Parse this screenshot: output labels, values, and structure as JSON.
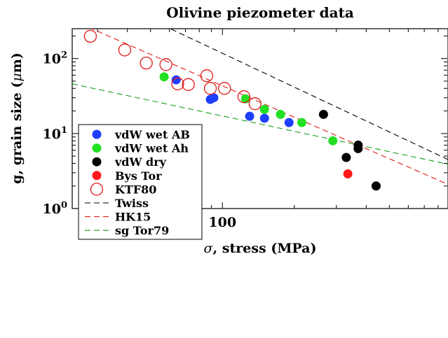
{
  "chart_data": {
    "type": "scatter",
    "title": "Olivine piezometer data",
    "xlabel_symbol": "σ",
    "xlabel_text": ", stress (MPa)",
    "ylabel_text": "g, grain size (",
    "ylabel_symbol": "μ",
    "ylabel_end": "m)",
    "x_scale": "log",
    "y_scale": "log",
    "xlim": [
      23.5,
      880
    ],
    "ylim": [
      1,
      250
    ],
    "x_ticks": [
      {
        "value": 100,
        "label": "100"
      }
    ],
    "y_ticks": [
      {
        "value": 1,
        "base": "10",
        "exp": "0"
      },
      {
        "value": 10,
        "base": "10",
        "exp": "1"
      },
      {
        "value": 100,
        "base": "10",
        "exp": "2"
      }
    ],
    "grid": false,
    "legend_position": "lower-left",
    "series": [
      {
        "name": "vdW wet AB",
        "kind": "marker",
        "color": "#1f3fff",
        "points": [
          [
            64,
            52
          ],
          [
            89,
            28.5
          ],
          [
            92,
            30
          ],
          [
            130,
            17
          ],
          [
            150,
            16
          ],
          [
            190,
            14
          ]
        ]
      },
      {
        "name": "vdW wet Ah",
        "kind": "marker",
        "color": "#22e022",
        "points": [
          [
            57,
            57
          ],
          [
            125,
            29
          ],
          [
            150,
            21
          ],
          [
            175,
            18
          ],
          [
            215,
            14
          ],
          [
            290,
            8
          ]
        ]
      },
      {
        "name": "vdW dry",
        "kind": "marker",
        "color": "#000000",
        "points": [
          [
            265,
            18
          ],
          [
            330,
            4.8
          ],
          [
            370,
            7
          ],
          [
            370,
            6.3
          ],
          [
            440,
            2
          ]
        ]
      },
      {
        "name": "Bys Tor",
        "kind": "marker",
        "color": "#ff1a1a",
        "points": [
          [
            335,
            2.9
          ]
        ]
      },
      {
        "name": "KTF80",
        "kind": "open-marker",
        "color": "#e01a1a",
        "points": [
          [
            28,
            198
          ],
          [
            39,
            130
          ],
          [
            48,
            87
          ],
          [
            58,
            83
          ],
          [
            65,
            46
          ],
          [
            72,
            45
          ],
          [
            86,
            59
          ],
          [
            89,
            40
          ],
          [
            102,
            40
          ],
          [
            123,
            31
          ],
          [
            137,
            25
          ]
        ]
      },
      {
        "name": "Twiss",
        "kind": "dashed-line",
        "color": "#000000",
        "points": [
          [
            23.5,
            1032
          ],
          [
            880,
            4.5
          ]
        ]
      },
      {
        "name": "HK15",
        "kind": "dashed-line",
        "color": "#e01a1a",
        "points": [
          [
            23.5,
            325
          ],
          [
            880,
            2.1
          ]
        ]
      },
      {
        "name": "sg Tor79",
        "kind": "dashed-line",
        "color": "#1a9e1a",
        "points": [
          [
            23.5,
            46
          ],
          [
            880,
            3.9
          ]
        ]
      }
    ]
  }
}
